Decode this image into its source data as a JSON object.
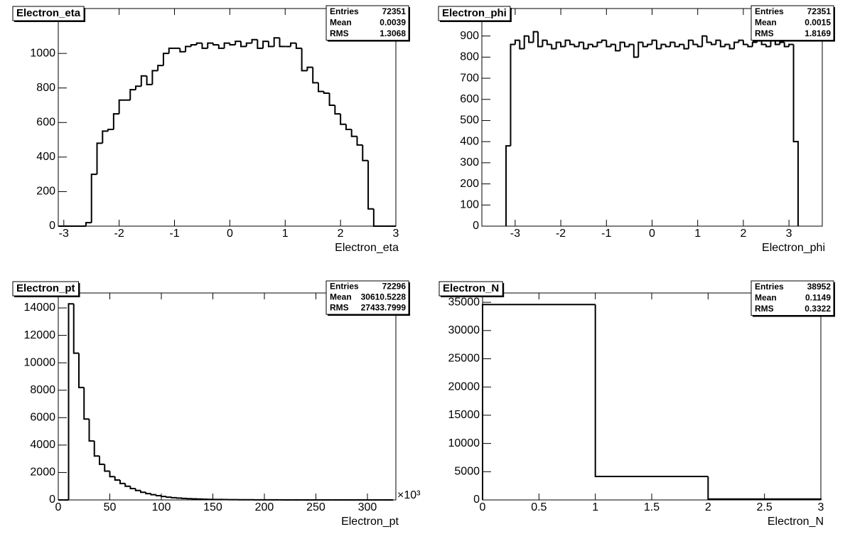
{
  "chart_data": [
    {
      "type": "histogram",
      "title": "Electron_eta",
      "x_label": "Electron_eta",
      "bins": [
        -3.1,
        -3,
        -2.9,
        -2.8,
        -2.7,
        -2.6,
        -2.5,
        -2.4,
        -2.3,
        -2.2,
        -2.1,
        -2,
        -1.9,
        -1.8,
        -1.7,
        -1.6,
        -1.5,
        -1.4,
        -1.3,
        -1.2,
        -1.1,
        -1,
        -0.9,
        -0.8,
        -0.7,
        -0.6,
        -0.5,
        -0.4,
        -0.3,
        -0.2,
        -0.1,
        0,
        0.1,
        0.2,
        0.3,
        0.4,
        0.5,
        0.6,
        0.7,
        0.8,
        0.9,
        1,
        1.1,
        1.2,
        1.3,
        1.4,
        1.5,
        1.6,
        1.7,
        1.8,
        1.9,
        2,
        2.1,
        2.2,
        2.3,
        2.4,
        2.5,
        2.6,
        2.7,
        2.8,
        2.9,
        3
      ],
      "values": [
        0,
        0,
        0,
        0,
        0,
        20,
        300,
        480,
        550,
        560,
        650,
        730,
        730,
        790,
        810,
        870,
        820,
        900,
        930,
        1000,
        1030,
        1030,
        1010,
        1040,
        1050,
        1060,
        1030,
        1060,
        1050,
        1030,
        1060,
        1050,
        1070,
        1040,
        1060,
        1080,
        1030,
        1070,
        1040,
        1090,
        1040,
        1040,
        1060,
        1030,
        900,
        920,
        830,
        780,
        770,
        700,
        650,
        590,
        560,
        520,
        470,
        380,
        100,
        0,
        0,
        0,
        0
      ],
      "color": "#000000",
      "xlim": [
        -3.1,
        3.0
      ],
      "ylim": [
        0,
        1260
      ],
      "xticks": [
        -3,
        -2,
        -1,
        0,
        1,
        2,
        3
      ],
      "yticks": [
        0,
        200,
        400,
        600,
        800,
        1000
      ],
      "stats": {
        "labels": [
          "Entries",
          "Mean",
          "RMS"
        ],
        "values": [
          72351,
          0.0039,
          1.3068
        ]
      }
    },
    {
      "type": "histogram",
      "title": "Electron_phi",
      "x_label": "Electron_phi",
      "bins": [
        -3.2,
        -3.1,
        -3,
        -2.9,
        -2.8,
        -2.7,
        -2.6,
        -2.5,
        -2.4,
        -2.3,
        -2.2,
        -2.1,
        -2,
        -1.9,
        -1.8,
        -1.7,
        -1.6,
        -1.5,
        -1.4,
        -1.3,
        -1.2,
        -1.1,
        -1,
        -0.9,
        -0.8,
        -0.7,
        -0.6,
        -0.5,
        -0.4,
        -0.3,
        -0.2,
        -0.1,
        0,
        0.1,
        0.2,
        0.3,
        0.4,
        0.5,
        0.6,
        0.7,
        0.8,
        0.9,
        1,
        1.1,
        1.2,
        1.3,
        1.4,
        1.5,
        1.6,
        1.7,
        1.8,
        1.9,
        2,
        2.1,
        2.2,
        2.3,
        2.4,
        2.5,
        2.6,
        2.7,
        2.8,
        2.9,
        3,
        3.1,
        3.2
      ],
      "values": [
        380,
        860,
        880,
        840,
        900,
        870,
        920,
        850,
        880,
        860,
        840,
        870,
        850,
        880,
        860,
        850,
        870,
        840,
        860,
        850,
        870,
        880,
        850,
        860,
        830,
        870,
        850,
        860,
        800,
        870,
        850,
        860,
        880,
        840,
        860,
        850,
        870,
        850,
        860,
        840,
        880,
        860,
        850,
        900,
        870,
        860,
        880,
        850,
        860,
        840,
        870,
        880,
        860,
        850,
        870,
        890,
        860,
        850,
        880,
        860,
        870,
        850,
        860,
        400
      ],
      "color": "#000000",
      "xlim": [
        -3.73,
        3.73
      ],
      "ylim": [
        0,
        1030
      ],
      "xticks": [
        -3,
        -2,
        -1,
        0,
        1,
        2,
        3
      ],
      "yticks": [
        0,
        100,
        200,
        300,
        400,
        500,
        600,
        700,
        800,
        900
      ],
      "stats": {
        "labels": [
          "Entries",
          "Mean",
          "RMS"
        ],
        "values": [
          72351,
          0.0015,
          1.8169
        ]
      }
    },
    {
      "type": "histogram",
      "title": "Electron_pt",
      "x_label": "Electron_pt",
      "x_multiplier": "×10³",
      "bins": [
        0,
        5,
        10,
        15,
        20,
        25,
        30,
        35,
        40,
        45,
        50,
        55,
        60,
        65,
        70,
        75,
        80,
        85,
        90,
        95,
        100,
        105,
        110,
        115,
        120,
        125,
        130,
        135,
        140,
        145,
        150,
        155,
        160,
        165,
        170,
        175,
        180,
        185,
        190,
        195,
        200,
        205,
        210,
        215,
        220,
        225,
        230,
        235,
        240,
        245,
        250,
        255,
        260,
        265,
        270,
        275,
        280,
        285,
        290,
        295,
        300,
        305,
        310,
        315,
        320,
        325
      ],
      "values": [
        0,
        0,
        14300,
        10700,
        8200,
        5900,
        4300,
        3200,
        2600,
        2100,
        1700,
        1450,
        1200,
        1000,
        830,
        690,
        560,
        460,
        380,
        310,
        250,
        200,
        165,
        135,
        110,
        90,
        75,
        62,
        50,
        42,
        35,
        30,
        25,
        20,
        17,
        14,
        12,
        10,
        8,
        7,
        6,
        5,
        4,
        4,
        3,
        3,
        2,
        2,
        1,
        1,
        1,
        1,
        1,
        1,
        0,
        0,
        0,
        0,
        0,
        0,
        0,
        0,
        0,
        0,
        0
      ],
      "color": "#000000",
      "xlim": [
        0,
        327.6
      ],
      "ylim": [
        0,
        15090
      ],
      "xticks": [
        0,
        50,
        100,
        150,
        200,
        250,
        300
      ],
      "yticks": [
        0,
        2000,
        4000,
        6000,
        8000,
        10000,
        12000,
        14000
      ],
      "stats": {
        "labels": [
          "Entries",
          "Mean",
          "RMS"
        ],
        "values": [
          72296,
          30610.5228,
          27433.7999
        ]
      }
    },
    {
      "type": "histogram",
      "title": "Electron_N",
      "x_label": "Electron_N",
      "bins": [
        0,
        1,
        2,
        3
      ],
      "values": [
        34600,
        4150,
        150
      ],
      "color": "#000000",
      "xlim": [
        0,
        3
      ],
      "ylim": [
        0,
        36650
      ],
      "xticks": [
        0,
        0.5,
        1,
        1.5,
        2,
        2.5,
        3
      ],
      "yticks": [
        0,
        5000,
        10000,
        15000,
        20000,
        25000,
        30000,
        35000
      ],
      "stats": {
        "labels": [
          "Entries",
          "Mean",
          "RMS"
        ],
        "values": [
          38952,
          0.1149,
          0.3322
        ]
      }
    }
  ]
}
